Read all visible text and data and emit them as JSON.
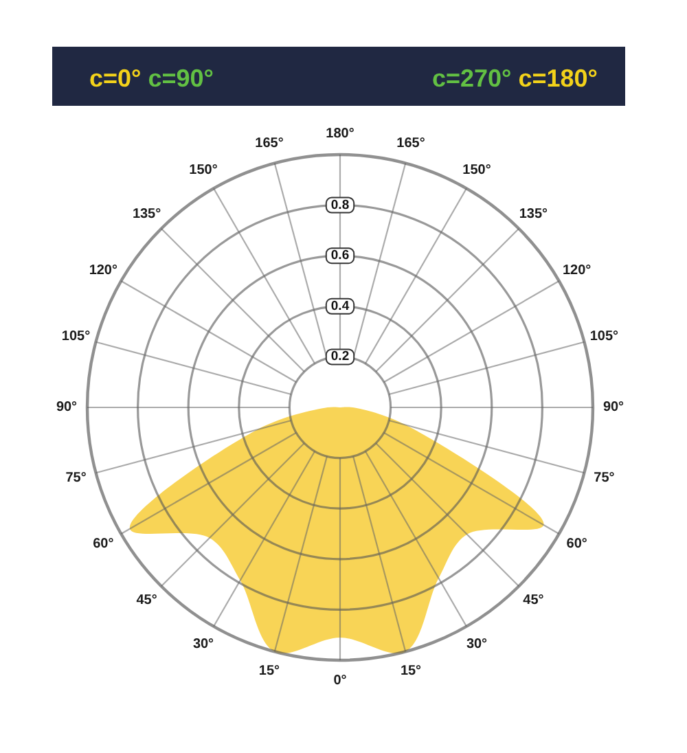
{
  "chart_data": {
    "type": "radar",
    "categories": [
      "180°",
      "165°",
      "150°",
      "135°",
      "120°",
      "105°",
      "90°",
      "75°",
      "60°",
      "45°",
      "30°",
      "15°",
      "0°",
      "15°",
      "30°",
      "45°",
      "60°",
      "75°",
      "90°",
      "105°",
      "120°",
      "135°",
      "150°",
      "165°"
    ],
    "series": [
      {
        "color": "#f8d456",
        "values": [
          0,
          0,
          0,
          0,
          0,
          0,
          0.05,
          0.27,
          0.93,
          0.71,
          0.78,
          1.0,
          0.91,
          1.0,
          0.79,
          0.73,
          0.96,
          0.34,
          0.05,
          0,
          0,
          0,
          0,
          0
        ]
      }
    ],
    "ylim": [
      0,
      1
    ],
    "yticks": [
      0.2,
      0.4,
      0.6,
      0.8
    ],
    "grid": true,
    "annotations": [
      "c=0°",
      "c=90°",
      "c=270°",
      "c=180°"
    ]
  }
}
